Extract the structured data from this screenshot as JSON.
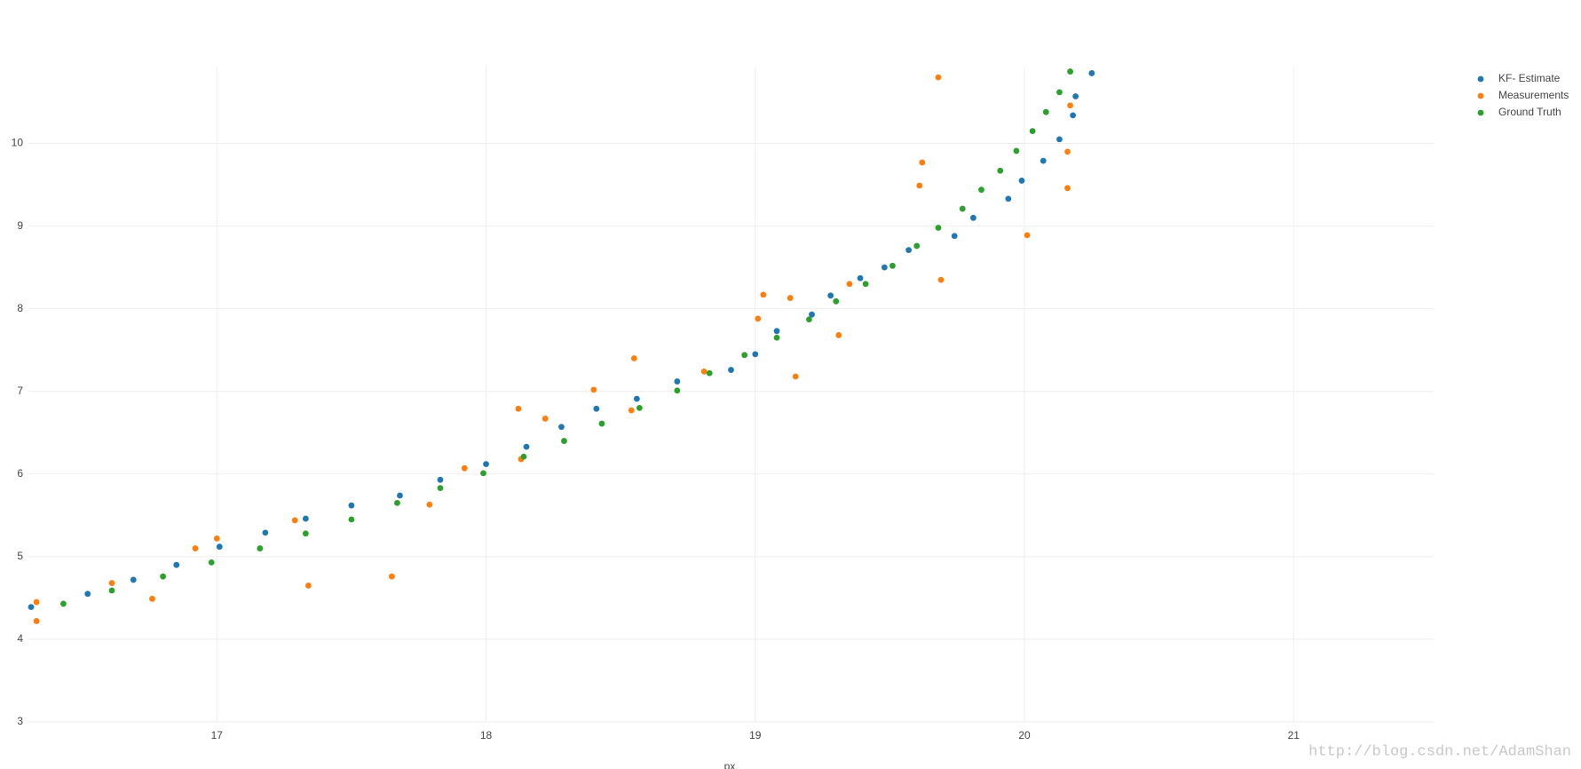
{
  "chart_data": {
    "type": "scatter",
    "x_label": "px",
    "xlim": [
      16.3,
      21.52
    ],
    "ylim": [
      3,
      10.93
    ],
    "xticks": [
      17,
      18,
      19,
      20,
      21
    ],
    "yticks": [
      3,
      4,
      5,
      6,
      7,
      8,
      9,
      10
    ],
    "grid": true,
    "legend": "top-right",
    "series": [
      {
        "name": "KF- Estimate",
        "color": "#1f77b4",
        "x": [
          16.31,
          16.52,
          16.69,
          16.85,
          17.01,
          17.18,
          17.33,
          17.5,
          17.68,
          17.83,
          18.0,
          18.15,
          18.28,
          18.41,
          18.56,
          18.71,
          18.91,
          19.0,
          19.08,
          19.21,
          19.28,
          19.39,
          19.48,
          19.57,
          19.74,
          19.81,
          19.94,
          19.99,
          20.07,
          20.13,
          20.18,
          20.19,
          20.25
        ],
        "values": [
          4.39,
          4.55,
          4.72,
          4.9,
          5.12,
          5.29,
          5.46,
          5.62,
          5.74,
          5.93,
          6.12,
          6.33,
          6.57,
          6.79,
          6.91,
          7.12,
          7.26,
          7.45,
          7.73,
          7.93,
          8.16,
          8.37,
          8.5,
          8.71,
          8.88,
          9.1,
          9.33,
          9.55,
          9.79,
          10.05,
          10.34,
          10.57,
          10.85
        ]
      },
      {
        "name": "Measurements",
        "color": "#ff7f0e",
        "x": [
          16.33,
          16.33,
          16.61,
          16.76,
          16.92,
          17.0,
          17.29,
          17.34,
          17.65,
          17.79,
          17.92,
          18.12,
          18.13,
          18.22,
          18.4,
          18.55,
          18.54,
          18.81,
          19.01,
          19.03,
          19.13,
          19.15,
          19.31,
          19.35,
          19.61,
          19.62,
          19.68,
          19.69,
          20.01,
          20.16,
          20.16,
          20.17
        ],
        "values": [
          4.45,
          4.22,
          4.68,
          4.49,
          5.1,
          5.22,
          5.44,
          4.65,
          4.76,
          5.63,
          6.07,
          6.79,
          6.18,
          6.67,
          7.02,
          7.4,
          6.77,
          7.24,
          7.88,
          8.17,
          8.13,
          7.18,
          7.68,
          8.3,
          9.49,
          9.77,
          10.8,
          8.35,
          8.89,
          9.9,
          9.46,
          10.46
        ]
      },
      {
        "name": "Ground Truth",
        "color": "#2ca02c",
        "x": [
          16.43,
          16.61,
          16.8,
          16.98,
          17.16,
          17.33,
          17.5,
          17.67,
          17.83,
          17.99,
          18.14,
          18.29,
          18.43,
          18.57,
          18.71,
          18.83,
          18.96,
          19.08,
          19.2,
          19.3,
          19.41,
          19.51,
          19.6,
          19.68,
          19.77,
          19.84,
          19.91,
          19.97,
          20.03,
          20.08,
          20.13,
          20.17
        ],
        "values": [
          4.43,
          4.59,
          4.76,
          4.93,
          5.1,
          5.28,
          5.45,
          5.65,
          5.83,
          6.01,
          6.21,
          6.4,
          6.61,
          6.8,
          7.01,
          7.22,
          7.44,
          7.65,
          7.87,
          8.09,
          8.3,
          8.52,
          8.76,
          8.98,
          9.21,
          9.44,
          9.67,
          9.91,
          10.15,
          10.38,
          10.62,
          10.87
        ]
      }
    ]
  },
  "watermark": "http://blog.csdn.net/AdamShan"
}
